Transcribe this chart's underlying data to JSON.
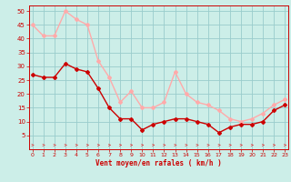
{
  "x": [
    0,
    1,
    2,
    3,
    4,
    5,
    6,
    7,
    8,
    9,
    10,
    11,
    12,
    13,
    14,
    15,
    16,
    17,
    18,
    19,
    20,
    21,
    22,
    23
  ],
  "wind_mean": [
    27,
    26,
    26,
    31,
    29,
    28,
    22,
    15,
    11,
    11,
    7,
    9,
    10,
    11,
    11,
    10,
    9,
    6,
    8,
    9,
    9,
    10,
    14,
    16
  ],
  "wind_gust": [
    45,
    41,
    41,
    50,
    47,
    45,
    32,
    26,
    17,
    21,
    15,
    15,
    17,
    28,
    20,
    17,
    16,
    14,
    11,
    10,
    11,
    13,
    16,
    18
  ],
  "mean_color": "#cc0000",
  "gust_color": "#ffaaaa",
  "bg_color": "#cceee8",
  "grid_color": "#99cccc",
  "xlabel": "Vent moyen/en rafales ( km/h )",
  "ylabel_ticks": [
    5,
    10,
    15,
    20,
    25,
    30,
    35,
    40,
    45,
    50
  ],
  "ylim": [
    0,
    52
  ],
  "xlim": [
    -0.3,
    23.3
  ],
  "axis_label_color": "#cc0000",
  "tick_color": "#cc0000",
  "arrow_color": "#dd4444"
}
